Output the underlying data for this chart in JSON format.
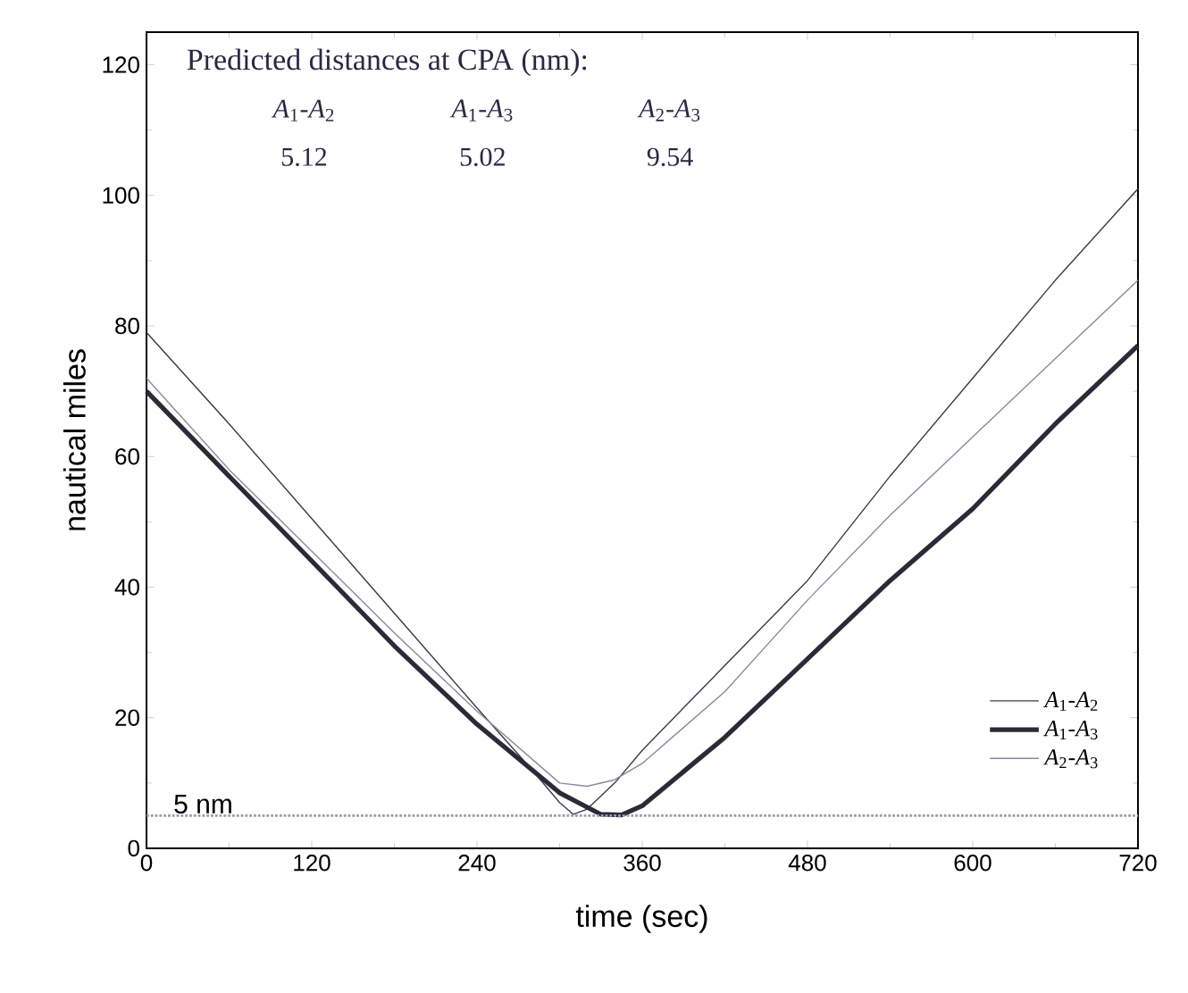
{
  "chart_data": {
    "type": "line",
    "xlabel": "time (sec)",
    "ylabel": "nautical miles",
    "annotations": [
      "Predicted distances at CPA (nm):",
      "*A*$_{1}$-*A*$_{2}$",
      "*A*$_{1}$-*A*$_{3}$",
      "*A*$_{2}$-*A*$_{3}$",
      "5.12",
      "5.02",
      "9.54"
    ],
    "series": [
      {
        "name": "*A*$_{1}$-*A*$_{2}$",
        "color": "#3a3a4a",
        "x": [
          0,
          60,
          120,
          180,
          240,
          280,
          300,
          310,
          320,
          340,
          360,
          420,
          480,
          540,
          600,
          660,
          720
        ],
        "values": [
          79,
          65,
          50.5,
          36,
          21.5,
          12,
          7,
          5.2,
          6,
          10,
          15,
          28,
          41,
          57,
          72,
          87,
          101
        ]
      },
      {
        "name": "*A*$_{1}$-*A*$_{3}$",
        "color": "#2a2a38",
        "x": [
          0,
          60,
          120,
          180,
          240,
          300,
          330,
          345,
          360,
          420,
          480,
          540,
          600,
          660,
          720
        ],
        "values": [
          70,
          57,
          44,
          31,
          19,
          8.5,
          5.2,
          5.1,
          6.5,
          17,
          29,
          41,
          52,
          65,
          77
        ]
      },
      {
        "name": "*A*$_{2}$-*A*$_{3}$",
        "color": "#8a8aa0",
        "x": [
          0,
          60,
          120,
          180,
          240,
          300,
          320,
          340,
          360,
          420,
          480,
          540,
          600,
          660,
          720
        ],
        "values": [
          72,
          58,
          45.5,
          33,
          21,
          10,
          9.5,
          10.5,
          13,
          24,
          38,
          51,
          63,
          75,
          87
        ]
      }
    ],
    "xlim": [
      0,
      720
    ],
    "ylim": [
      0,
      125
    ],
    "xticks": [
      0,
      120,
      240,
      360,
      480,
      600,
      720
    ],
    "yticks": [
      0,
      20,
      40,
      60,
      80,
      100,
      120
    ],
    "ref_lines": [
      {
        "axis": "y",
        "value": 5,
        "label": "5 nm",
        "color": "#9a9ab0",
        "line_style": "dotted"
      }
    ],
    "legend": "bottom right",
    "marker": "none",
    "line_style": "solid",
    "grid": false
  }
}
